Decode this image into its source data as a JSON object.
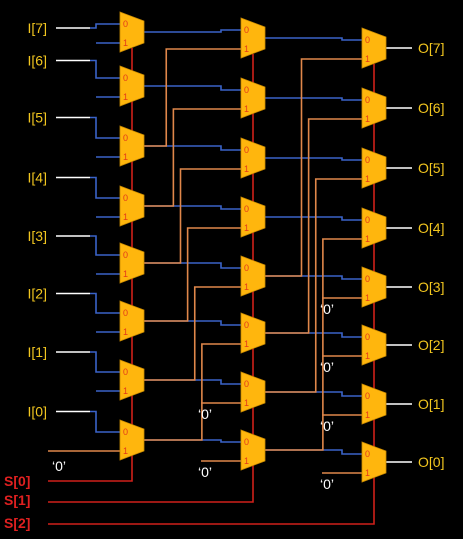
{
  "inputs": [
    "I[7]",
    "I[6]",
    "I[5]",
    "I[4]",
    "I[3]",
    "I[2]",
    "I[1]",
    "I[0]"
  ],
  "outputs": [
    "O[7]",
    "O[6]",
    "O[5]",
    "O[4]",
    "O[3]",
    "O[2]",
    "O[1]",
    "O[0]"
  ],
  "selects": [
    "S[0]",
    "S[1]",
    "S[2]"
  ],
  "zero_label": "‘0’",
  "pin_labels": {
    "in0": "0",
    "in1": "1"
  },
  "colors": {
    "background": "#000000",
    "mux_fill": "#ffb60d",
    "data_wire": "#3a63c8",
    "shift_wire": "#e0874a",
    "select_wire": "#d0201a",
    "io_wire": "#ffffff",
    "io_text": "#f2c61f",
    "select_text": "#e02020"
  }
}
